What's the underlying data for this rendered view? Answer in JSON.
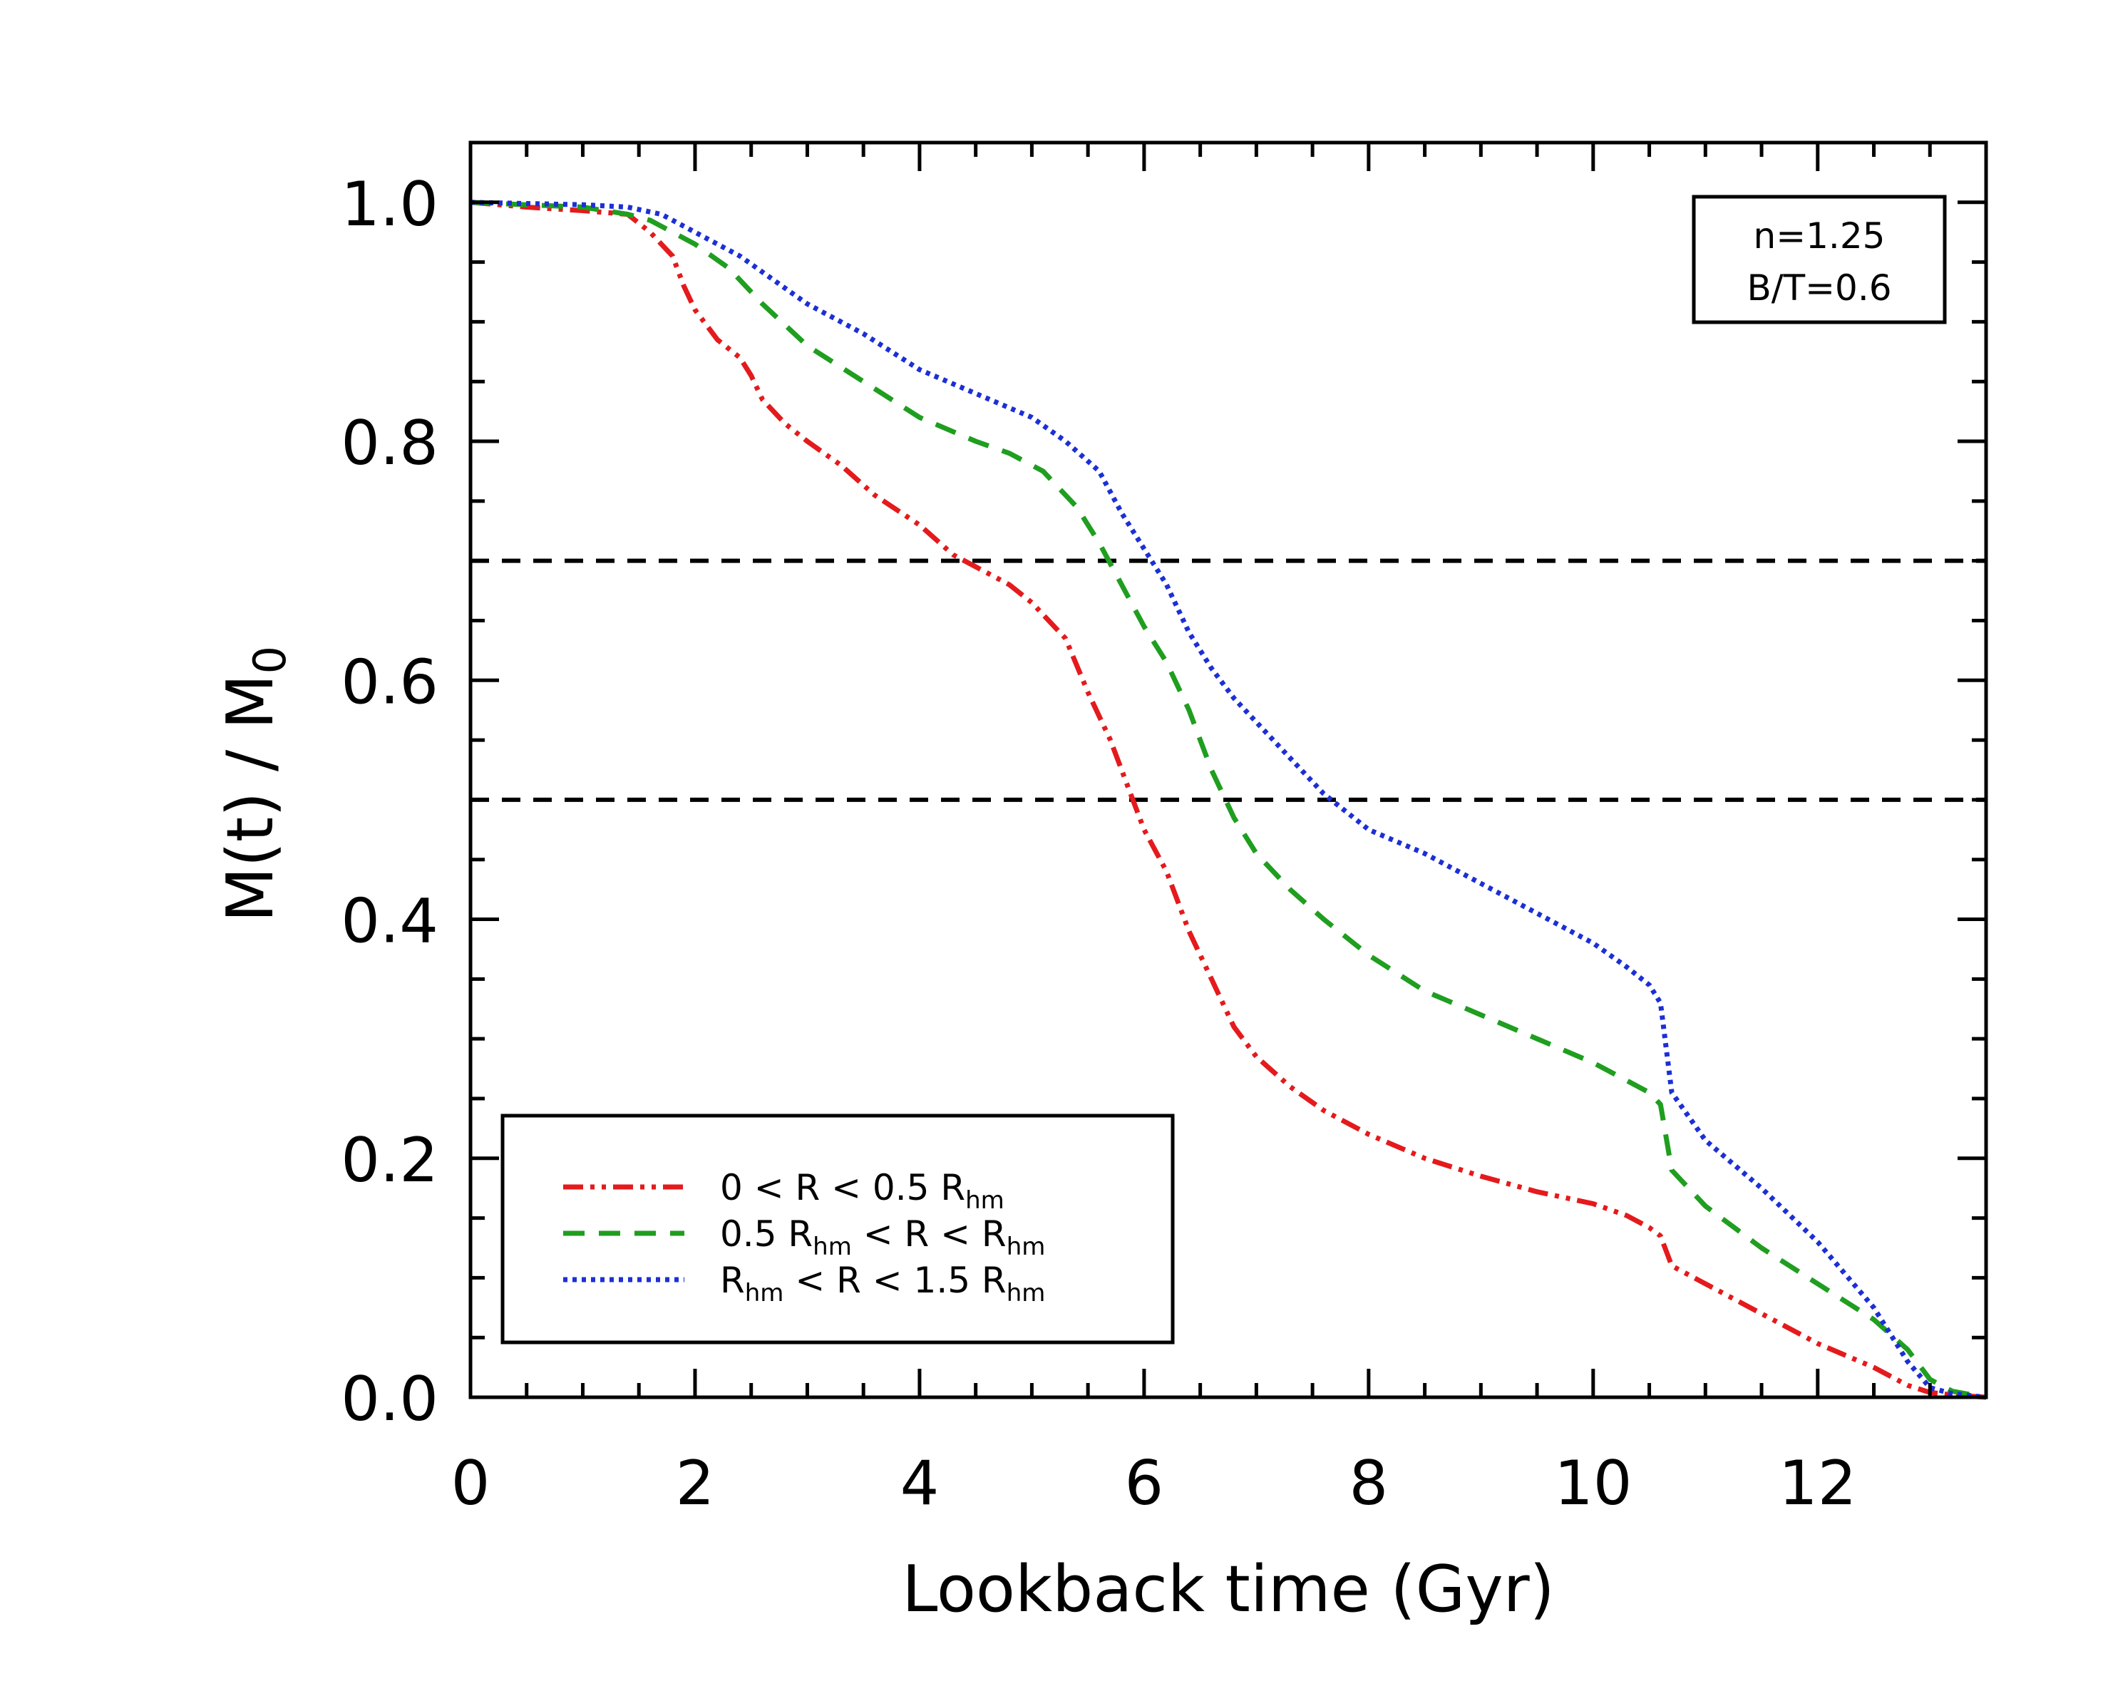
{
  "chart_data": {
    "type": "line",
    "title": "",
    "xlabel": "Lookback time (Gyr)",
    "ylabel": {
      "main": "M(t)  /  M",
      "sub": "0"
    },
    "xlim": [
      0,
      13.5
    ],
    "ylim": [
      0,
      1.05
    ],
    "x_ticks": [
      0,
      2,
      4,
      6,
      8,
      10,
      12
    ],
    "x_tick_labels": [
      "0",
      "2",
      "4",
      "6",
      "8",
      "10",
      "12"
    ],
    "y_ticks": [
      0.0,
      0.2,
      0.4,
      0.6,
      0.8,
      1.0
    ],
    "y_tick_labels": [
      "0.0",
      "0.2",
      "0.4",
      "0.6",
      "0.8",
      "1.0"
    ],
    "x_minor_step": 0.5,
    "y_minor_step": 0.05,
    "reference_lines": [
      0.7,
      0.5
    ],
    "annotation": {
      "lines": [
        "n=1.25",
        "B/T=0.6"
      ],
      "placement": "top-right"
    },
    "legend_placement": "bottom-left",
    "series": [
      {
        "name": "0 < R < 0.5 R_hm",
        "label_parts": [
          [
            "0  <  R  <  0.5  R",
            "hm",
            ""
          ]
        ],
        "color": "#e41a1c",
        "style": "dash-dot-dot",
        "x": [
          0,
          0.5,
          1.0,
          1.4,
          1.6,
          1.8,
          1.9,
          2.0,
          2.2,
          2.4,
          2.5,
          2.6,
          2.8,
          3.0,
          3.3,
          3.6,
          4.0,
          4.3,
          4.6,
          4.8,
          5.0,
          5.2,
          5.3,
          5.5,
          5.7,
          5.9,
          6.0,
          6.2,
          6.4,
          6.6,
          6.8,
          7.0,
          7.3,
          7.6,
          8.0,
          8.5,
          9.0,
          9.5,
          10.0,
          10.3,
          10.5,
          10.6,
          10.7,
          11.0,
          11.5,
          12.0,
          12.5,
          12.8,
          13.0,
          13.2,
          13.5
        ],
        "y": [
          1.0,
          0.996,
          0.993,
          0.99,
          0.975,
          0.955,
          0.93,
          0.91,
          0.885,
          0.87,
          0.855,
          0.835,
          0.815,
          0.8,
          0.78,
          0.755,
          0.73,
          0.705,
          0.69,
          0.68,
          0.665,
          0.645,
          0.635,
          0.59,
          0.55,
          0.5,
          0.475,
          0.44,
          0.39,
          0.35,
          0.31,
          0.285,
          0.26,
          0.24,
          0.22,
          0.2,
          0.185,
          0.172,
          0.162,
          0.152,
          0.142,
          0.135,
          0.11,
          0.095,
          0.07,
          0.045,
          0.025,
          0.01,
          0.004,
          0.002,
          0.0
        ]
      },
      {
        "name": "0.5 R_hm < R < R_hm",
        "label_parts": [
          [
            "0.5  R",
            "hm",
            "  <  R  <  R"
          ],
          [
            "",
            "hm",
            ""
          ]
        ],
        "color": "#1f9e1f",
        "style": "dashed",
        "x": [
          0,
          0.5,
          1.0,
          1.4,
          1.6,
          1.8,
          2.0,
          2.3,
          2.6,
          3.0,
          3.5,
          4.0,
          4.5,
          4.8,
          5.1,
          5.4,
          5.6,
          5.8,
          6.0,
          6.2,
          6.4,
          6.6,
          6.8,
          7.0,
          7.3,
          7.6,
          8.0,
          8.5,
          9.0,
          9.5,
          10.0,
          10.3,
          10.5,
          10.6,
          10.7,
          11.0,
          11.5,
          12.0,
          12.5,
          12.8,
          13.0,
          13.2,
          13.5
        ],
        "y": [
          1.0,
          0.998,
          0.996,
          0.99,
          0.985,
          0.975,
          0.965,
          0.945,
          0.915,
          0.88,
          0.85,
          0.82,
          0.8,
          0.79,
          0.775,
          0.745,
          0.715,
          0.68,
          0.645,
          0.615,
          0.575,
          0.525,
          0.485,
          0.455,
          0.425,
          0.4,
          0.37,
          0.34,
          0.32,
          0.3,
          0.28,
          0.265,
          0.255,
          0.245,
          0.19,
          0.16,
          0.125,
          0.095,
          0.065,
          0.04,
          0.015,
          0.005,
          0.0
        ]
      },
      {
        "name": "R_hm < R < 1.5 R_hm",
        "label_parts": [
          [
            "R",
            "hm",
            "  <  R  <  1.5  R"
          ],
          [
            "",
            "hm",
            ""
          ]
        ],
        "color": "#1c2fd6",
        "style": "dotted",
        "x": [
          0,
          0.5,
          1.0,
          1.4,
          1.7,
          1.9,
          2.1,
          2.4,
          2.7,
          3.0,
          3.5,
          4.0,
          4.5,
          5.0,
          5.3,
          5.6,
          5.8,
          6.0,
          6.2,
          6.4,
          6.6,
          6.8,
          7.0,
          7.3,
          7.6,
          8.0,
          8.5,
          9.0,
          9.5,
          10.0,
          10.3,
          10.5,
          10.6,
          10.7,
          11.0,
          11.5,
          12.0,
          12.5,
          12.8,
          13.0,
          13.2,
          13.5
        ],
        "y": [
          1.0,
          0.999,
          0.998,
          0.996,
          0.99,
          0.98,
          0.97,
          0.955,
          0.935,
          0.915,
          0.89,
          0.86,
          0.84,
          0.82,
          0.8,
          0.775,
          0.74,
          0.71,
          0.68,
          0.64,
          0.61,
          0.585,
          0.565,
          0.535,
          0.505,
          0.475,
          0.455,
          0.43,
          0.405,
          0.38,
          0.36,
          0.345,
          0.33,
          0.255,
          0.215,
          0.175,
          0.13,
          0.075,
          0.03,
          0.008,
          0.003,
          0.0
        ]
      }
    ]
  }
}
